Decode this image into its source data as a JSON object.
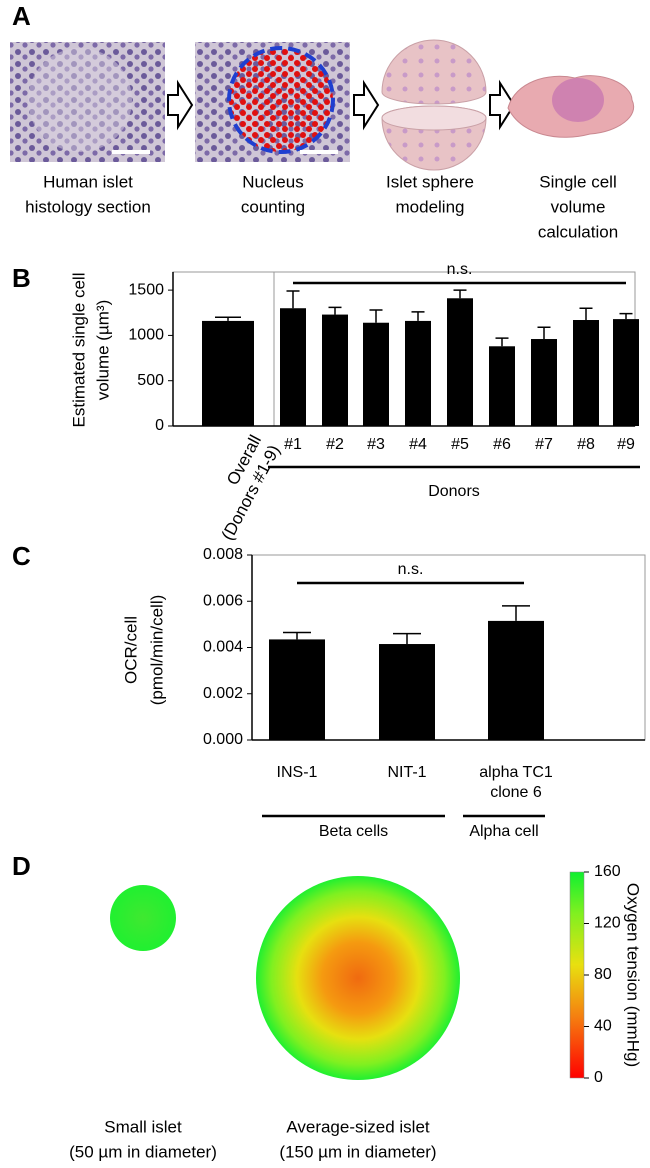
{
  "panel_a": {
    "label": "A",
    "steps": [
      {
        "label": [
          "Human islet",
          "histology section"
        ]
      },
      {
        "label": [
          "Nucleus",
          "counting"
        ]
      },
      {
        "label": [
          "Islet sphere",
          "modeling"
        ]
      },
      {
        "label": [
          "Single cell",
          "volume",
          "calculation"
        ]
      }
    ]
  },
  "chart_data": [
    {
      "type": "bar",
      "panel": "B",
      "ylabel": [
        "Estimated single cell",
        "volume (µm³)"
      ],
      "categories": [
        "Overall\n(Donors #1-9)",
        "#1",
        "#2",
        "#3",
        "#4",
        "#5",
        "#6",
        "#7",
        "#8",
        "#9"
      ],
      "values": [
        1160,
        1300,
        1230,
        1140,
        1160,
        1410,
        880,
        960,
        1170,
        1180
      ],
      "errors": [
        40,
        190,
        80,
        140,
        100,
        90,
        90,
        130,
        130,
        60
      ],
      "color": "#000000",
      "ylim": [
        0,
        1700
      ],
      "yticks": [
        0,
        500,
        1000,
        1500
      ],
      "annotation": "n.s.",
      "groups": [
        {
          "label": "Donors"
        }
      ]
    },
    {
      "type": "bar",
      "panel": "C",
      "ylabel": [
        "OCR/cell",
        "(pmol/min/cell)"
      ],
      "categories": [
        "INS-1",
        "NIT-1",
        "alpha TC1\nclone 6"
      ],
      "values": [
        0.00435,
        0.00415,
        0.00515
      ],
      "errors": [
        0.0003,
        0.00045,
        0.00065
      ],
      "color": "#000000",
      "ylim": [
        0,
        0.008
      ],
      "yticks": [
        {
          "value": 0,
          "label": "0.000"
        },
        {
          "value": 0.002,
          "label": "0.002"
        },
        {
          "value": 0.004,
          "label": "0.004"
        },
        {
          "value": 0.006,
          "label": "0.006"
        },
        {
          "value": 0.008,
          "label": "0.008"
        }
      ],
      "annotation": "n.s.",
      "groups": [
        {
          "label": "Beta cells"
        },
        {
          "label": "Alpha cell"
        }
      ]
    }
  ],
  "panel_d": {
    "label": "D",
    "islets": [
      {
        "label": [
          "Small islet",
          "(50 µm in diameter)"
        ]
      },
      {
        "label": [
          "Average-sized islet",
          "(150 µm in diameter)"
        ]
      }
    ],
    "colorbar": {
      "label": "Oxygen tension (mmHg)",
      "lim": [
        0,
        160
      ],
      "ticks": [
        0,
        40,
        80,
        120,
        160
      ]
    }
  }
}
